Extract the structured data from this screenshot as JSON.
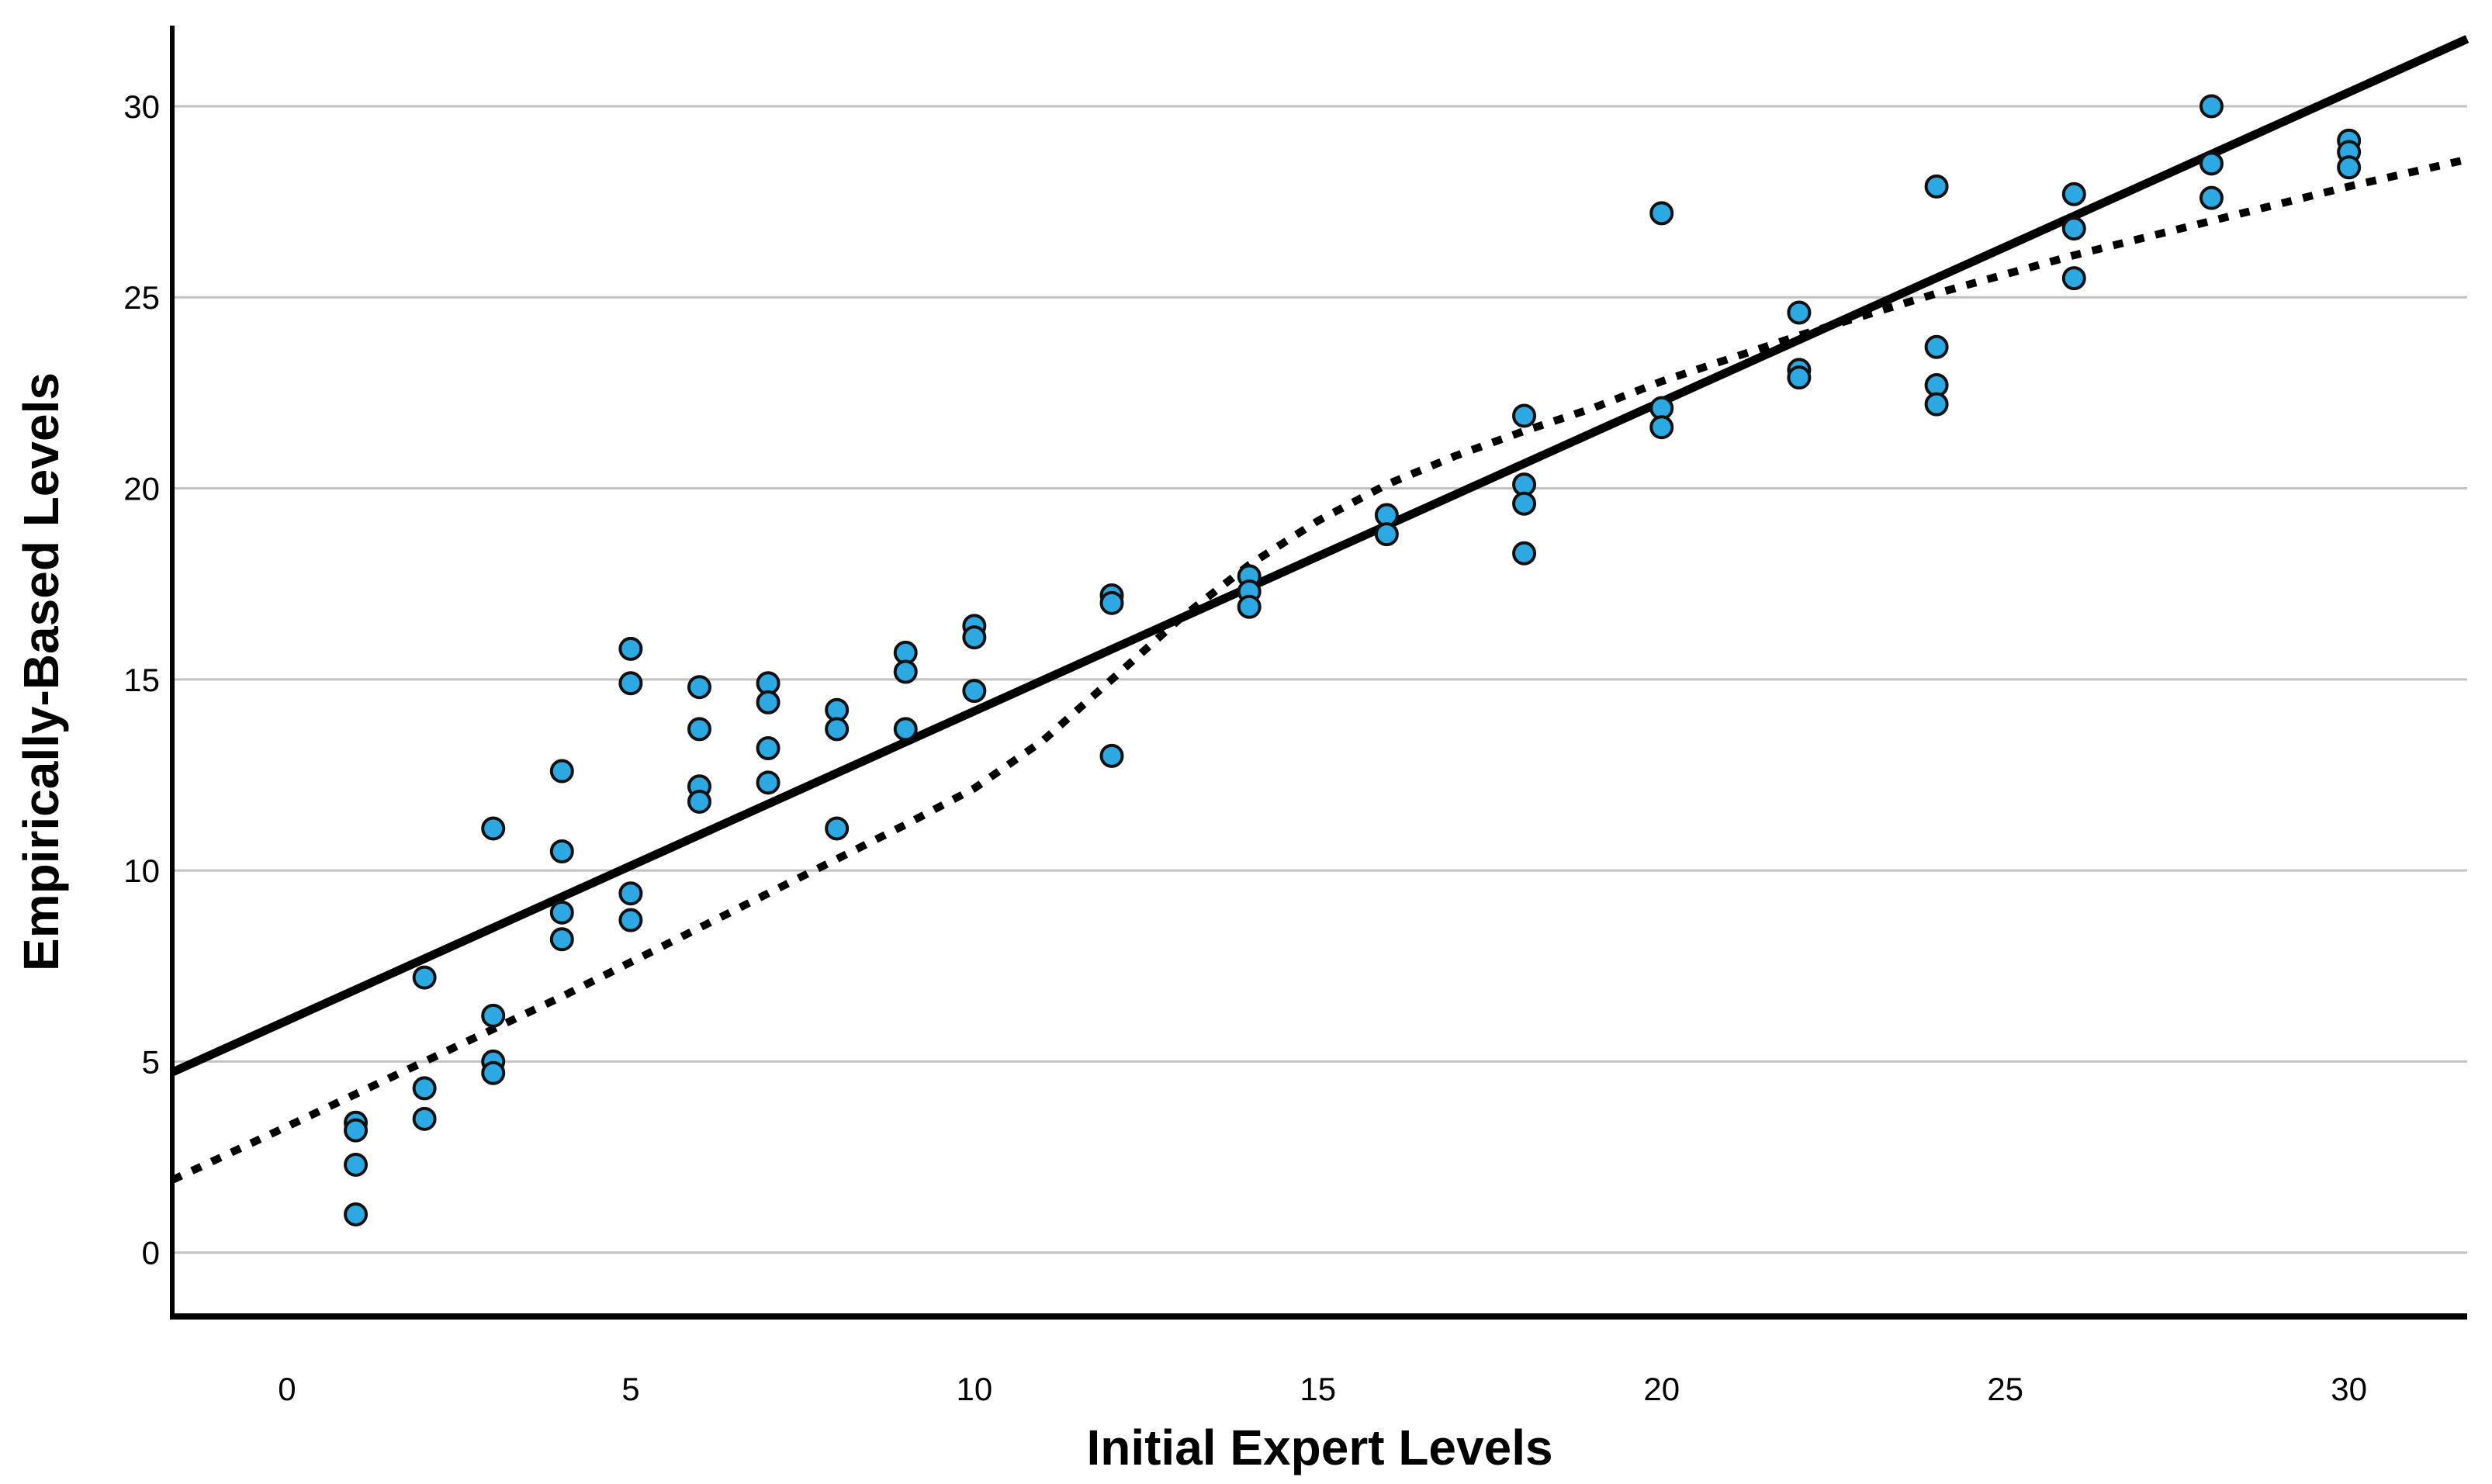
{
  "chart_data": {
    "type": "scatter",
    "title": "",
    "xlabel": "Initial Expert Levels",
    "ylabel": "Empirically-Based Levels",
    "xlim": [
      -1.67,
      31.72
    ],
    "ylim": [
      -1.67,
      32.11
    ],
    "x_ticks": [
      0,
      5,
      10,
      15,
      20,
      25,
      30
    ],
    "y_ticks": [
      0,
      5,
      10,
      15,
      20,
      25,
      30
    ],
    "grid": "horizontal-only",
    "legend": "none",
    "colors": {
      "point_fill": "#2CA8E2",
      "point_stroke": "#111111",
      "line_color": "#000000",
      "grid_color": "#c2c2c2",
      "axis_color": "#000000",
      "background": "#ffffff"
    },
    "points": [
      [
        1,
        3.4
      ],
      [
        1,
        3.2
      ],
      [
        1,
        2.3
      ],
      [
        1,
        1.0
      ],
      [
        2,
        7.2
      ],
      [
        2,
        4.3
      ],
      [
        2,
        3.5
      ],
      [
        3,
        11.1
      ],
      [
        3,
        6.2
      ],
      [
        3,
        5.0
      ],
      [
        3,
        4.7
      ],
      [
        4,
        12.6
      ],
      [
        4,
        10.5
      ],
      [
        4,
        8.9
      ],
      [
        4,
        8.2
      ],
      [
        5,
        15.8
      ],
      [
        5,
        14.9
      ],
      [
        5,
        9.4
      ],
      [
        5,
        8.7
      ],
      [
        6,
        14.8
      ],
      [
        6,
        13.7
      ],
      [
        6,
        12.2
      ],
      [
        6,
        11.8
      ],
      [
        7,
        14.9
      ],
      [
        7,
        14.4
      ],
      [
        7,
        13.2
      ],
      [
        7,
        12.3
      ],
      [
        8,
        14.2
      ],
      [
        8,
        13.7
      ],
      [
        8,
        11.1
      ],
      [
        9,
        15.7
      ],
      [
        9,
        15.2
      ],
      [
        9,
        13.7
      ],
      [
        10,
        16.4
      ],
      [
        10,
        16.1
      ],
      [
        10,
        14.7
      ],
      [
        12,
        17.2
      ],
      [
        12,
        17.0
      ],
      [
        12,
        13.0
      ],
      [
        14,
        17.7
      ],
      [
        14,
        17.3
      ],
      [
        14,
        16.9
      ],
      [
        16,
        19.3
      ],
      [
        16,
        18.8
      ],
      [
        18,
        21.9
      ],
      [
        18,
        20.1
      ],
      [
        18,
        19.6
      ],
      [
        18,
        18.3
      ],
      [
        20,
        27.2
      ],
      [
        20,
        22.1
      ],
      [
        20,
        21.6
      ],
      [
        22,
        24.6
      ],
      [
        22,
        23.1
      ],
      [
        22,
        22.9
      ],
      [
        24,
        27.9
      ],
      [
        24,
        23.7
      ],
      [
        24,
        22.7
      ],
      [
        24,
        22.2
      ],
      [
        26,
        27.7
      ],
      [
        26,
        26.8
      ],
      [
        26,
        25.5
      ],
      [
        28,
        30.0
      ],
      [
        28,
        28.5
      ],
      [
        28,
        27.6
      ],
      [
        30,
        29.1
      ],
      [
        30,
        28.8
      ],
      [
        30,
        28.4
      ]
    ],
    "fit_lines": {
      "linear": {
        "style": "solid",
        "slope": 0.81,
        "intercept": 6.07,
        "x1": -1.67,
        "y1": 4.72,
        "x2": 31.72,
        "y2": 31.76
      },
      "curve": {
        "style": "dotted",
        "points": [
          [
            -1.67,
            1.9
          ],
          [
            0,
            3.3
          ],
          [
            2,
            5.0
          ],
          [
            4,
            6.7
          ],
          [
            6,
            8.5
          ],
          [
            8,
            10.3
          ],
          [
            9,
            11.2
          ],
          [
            10,
            12.15
          ],
          [
            11,
            13.4
          ],
          [
            12,
            15.0
          ],
          [
            13,
            16.6
          ],
          [
            14,
            18.0
          ],
          [
            15,
            19.15
          ],
          [
            16,
            20.1
          ],
          [
            17,
            20.85
          ],
          [
            18,
            21.5
          ],
          [
            19,
            22.1
          ],
          [
            20,
            22.8
          ],
          [
            21,
            23.4
          ],
          [
            22,
            24.0
          ],
          [
            23,
            24.55
          ],
          [
            24,
            25.1
          ],
          [
            25,
            25.6
          ],
          [
            26,
            26.1
          ],
          [
            27,
            26.55
          ],
          [
            28,
            27.0
          ],
          [
            29,
            27.45
          ],
          [
            30,
            27.9
          ],
          [
            31.7,
            28.6
          ]
        ]
      }
    }
  }
}
